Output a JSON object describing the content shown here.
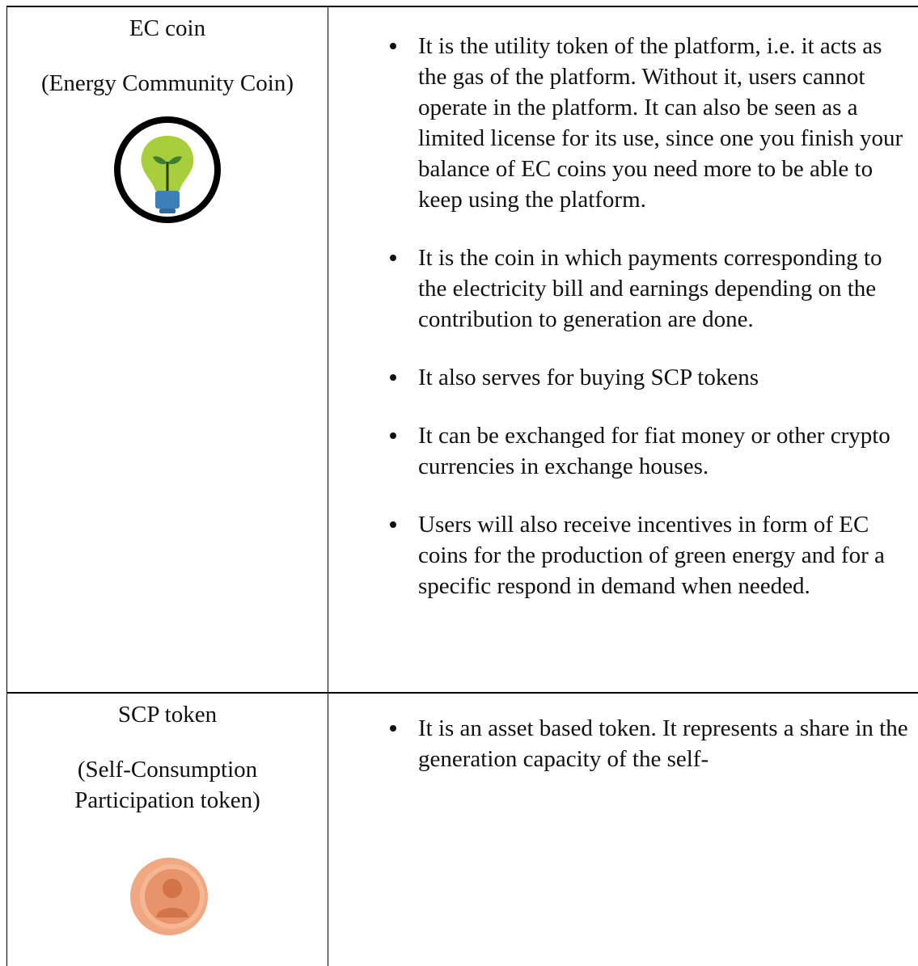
{
  "table": {
    "rows": [
      {
        "name": "EC coin",
        "subtitle": "(Energy Community Coin)",
        "bullets": [
          "It is the utility token of the platform, i.e. it acts as the gas of the platform. Without it, users cannot operate in the platform. It can also be seen as a limited license for its use, since one you finish your balance of EC coins you need more to be able to keep using the platform.",
          "It is the coin in which payments corresponding to the electricity bill and earnings depending on the contribution to generation are done.",
          "It also serves for buying SCP tokens",
          "It can be exchanged for fiat money or other crypto currencies in exchange houses.",
          "Users will also receive incentives in form of EC coins for the production of green energy and for a specific respond in demand when needed."
        ]
      },
      {
        "name": "SCP token",
        "subtitle": "(Self-Consumption Participation token)",
        "bullets": [
          "It is an asset based token. It represents a share in the generation capacity of the self-"
        ]
      }
    ]
  }
}
